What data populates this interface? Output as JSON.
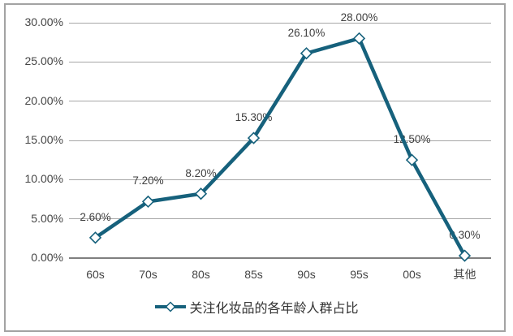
{
  "chart_data": {
    "type": "line",
    "title": "",
    "series_name": "关注化妆品的各年龄人群占比",
    "categories": [
      "60s",
      "70s",
      "80s",
      "85s",
      "90s",
      "95s",
      "00s",
      "其他"
    ],
    "values": [
      2.6,
      7.2,
      8.2,
      15.3,
      26.1,
      28.0,
      12.5,
      0.3
    ],
    "data_labels": [
      "2.60%",
      "7.20%",
      "8.20%",
      "15.30%",
      "26.10%",
      "28.00%",
      "12.50%",
      "0.30%"
    ],
    "ylim": [
      0,
      30
    ],
    "y_ticks": [
      {
        "value": 30,
        "label": "30.00%"
      },
      {
        "value": 25,
        "label": "25.00%"
      },
      {
        "value": 20,
        "label": "20.00%"
      },
      {
        "value": 15,
        "label": "15.00%"
      },
      {
        "value": 10,
        "label": "10.00%"
      },
      {
        "value": 5,
        "label": "5.00%"
      },
      {
        "value": 0,
        "label": "0.00%"
      }
    ],
    "grid": true,
    "legend_position": "bottom",
    "marker": "open-diamond",
    "colors": {
      "line": "#16617c",
      "marker_fill": "#ffffff",
      "grid": "#a6a6a6",
      "axis": "#7f7f7f",
      "tick_text": "#454545",
      "data_label_text": "#3f3f3f",
      "legend_text": "#333333",
      "border": "#a3a3a3"
    }
  }
}
